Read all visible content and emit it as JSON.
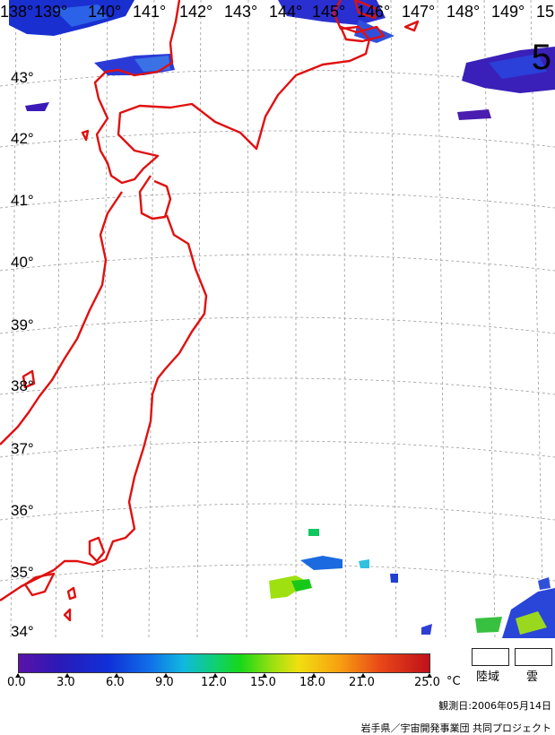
{
  "page_number": "5",
  "longitude_labels": [
    "138°",
    "139°",
    "140°",
    "141°",
    "142°",
    "143°",
    "144°",
    "145°",
    "146°",
    "147°",
    "148°",
    "149°",
    "15"
  ],
  "latitude_labels": [
    "43°",
    "42°",
    "41°",
    "40°",
    "39°",
    "38°",
    "37°",
    "36°",
    "35°",
    "34°"
  ],
  "colorbar": {
    "unit": "°C",
    "tick_labels": [
      "0.0",
      "3.0",
      "6.0",
      "9.0",
      "12.0",
      "15.0",
      "18.0",
      "21.0",
      "25.0"
    ],
    "range": [
      0.0,
      25.0
    ],
    "colors": [
      "#5a12a8",
      "#2a1ab8",
      "#1030d8",
      "#1070e8",
      "#10b8e0",
      "#10d070",
      "#18d818",
      "#9ee010",
      "#f0e010",
      "#f8a010",
      "#e84818",
      "#c0101a"
    ]
  },
  "key": {
    "land_label": "陸域",
    "cloud_label": "雲"
  },
  "observation_date": "観測日:2006年05月14日",
  "credit": "岩手県／宇宙開発事業団 共同プロジェクト",
  "coastline_color": "#e01010",
  "grid_color": "#999999"
}
